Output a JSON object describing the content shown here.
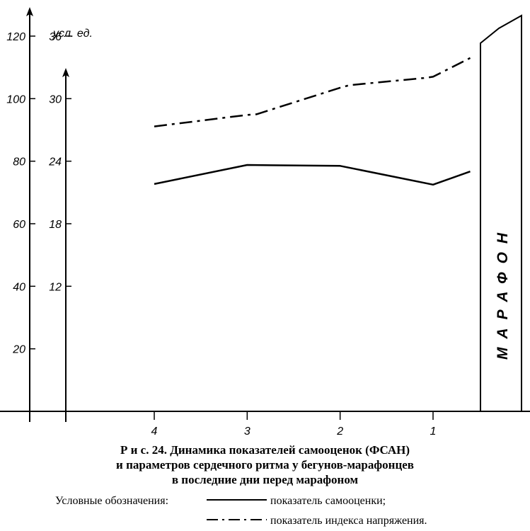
{
  "chart_data": {
    "type": "line",
    "unit_label": "усл. ед.",
    "left_axis_ticks": [
      "120",
      "100",
      "80",
      "60",
      "40",
      "20"
    ],
    "right_axis_ticks": [
      "36",
      "30",
      "24",
      "18",
      "12"
    ],
    "x_ticks": [
      "4",
      "3",
      "2",
      "1"
    ],
    "series": [
      {
        "name": "показатель самооценки",
        "style": "solid",
        "points": [
          [
            4,
            72.7
          ],
          [
            3,
            78.8
          ],
          [
            2,
            78.5
          ],
          [
            1,
            72.5
          ],
          [
            0.6,
            76.7
          ]
        ]
      },
      {
        "name": "показатель индекса напряжения",
        "style": "dash-dot",
        "points": [
          [
            4,
            91.1
          ],
          [
            3,
            94.8
          ],
          [
            2.9,
            95.0
          ],
          [
            2,
            103.5
          ],
          [
            1.9,
            104.3
          ],
          [
            1.1,
            106.6
          ],
          [
            1,
            107.0
          ],
          [
            0.6,
            113.0
          ]
        ]
      }
    ],
    "marathon_label": "МАРАФОН"
  },
  "caption": {
    "line1": "Р и с.  24.  Динамика показателей самооценок (ФСАН)",
    "line2": "и параметров сердечного ритма у бегунов-марафонцев",
    "line3": "в последние дни перед марафоном"
  },
  "legend": {
    "heading": "Условные обозначения:",
    "solid_label": "показатель самооценки;",
    "dashdot_label": "показатель индекса напряжения."
  }
}
